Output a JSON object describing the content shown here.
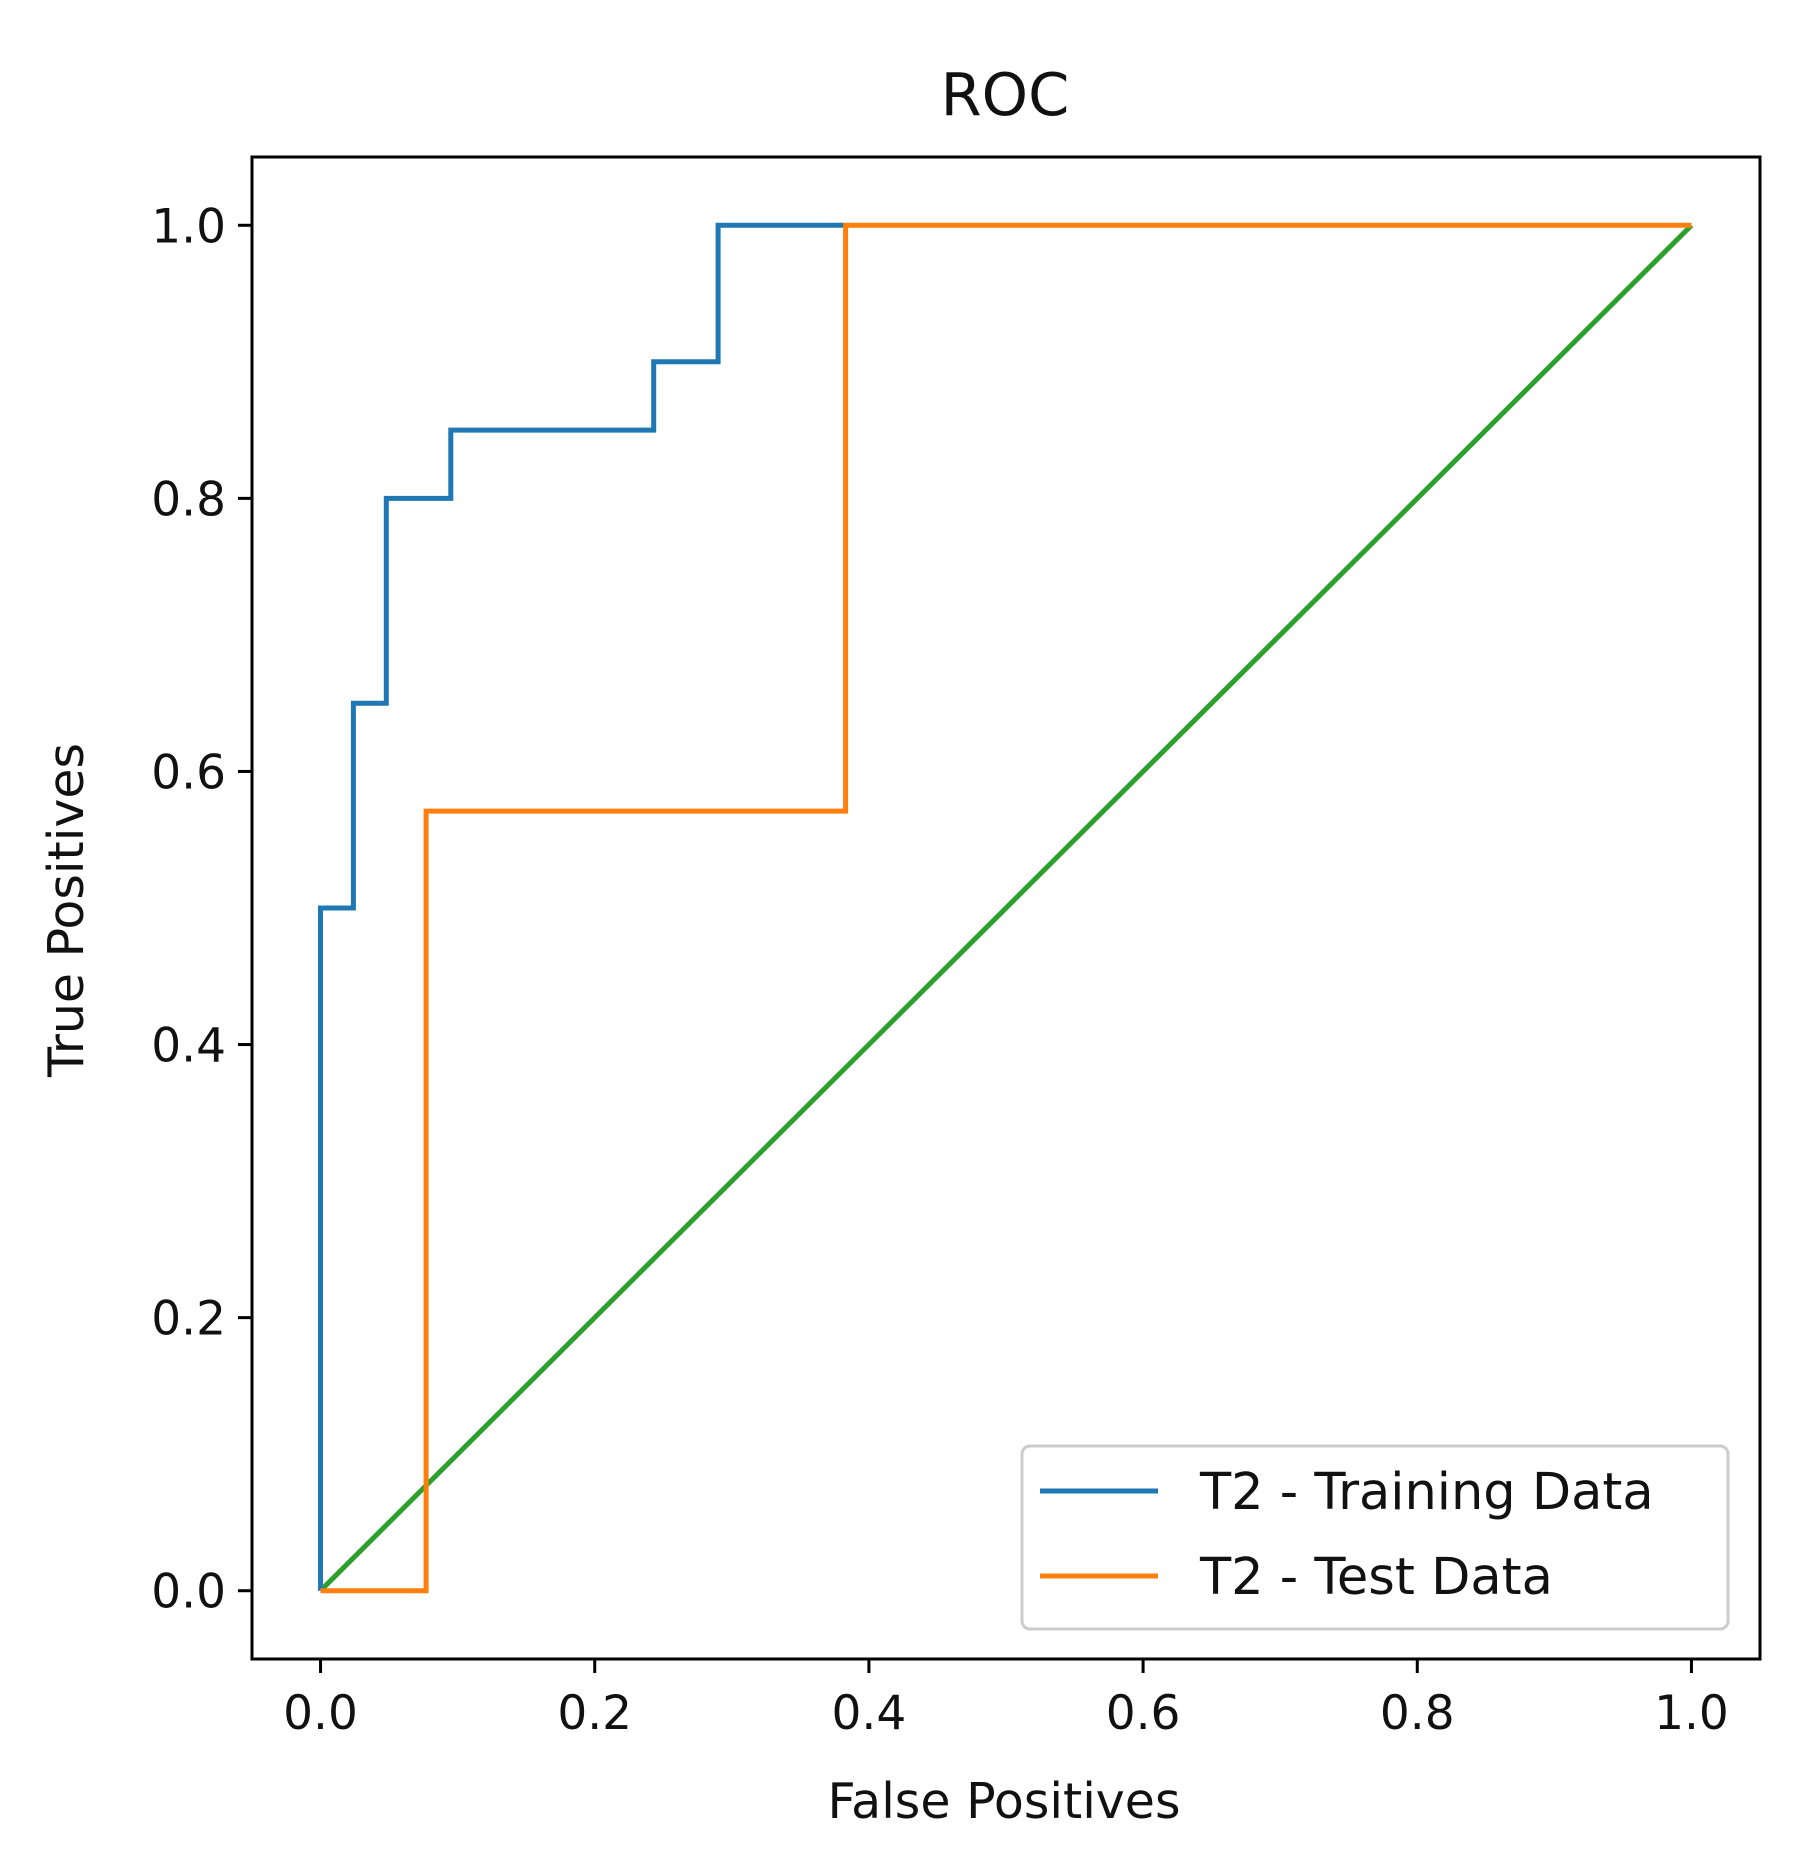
{
  "chart_data": {
    "type": "line",
    "title": "ROC",
    "xlabel": "False Positives",
    "ylabel": "True Positives",
    "xlim": [
      -0.05,
      1.05
    ],
    "ylim": [
      -0.05,
      1.05
    ],
    "xticks": [
      0.0,
      0.2,
      0.4,
      0.6,
      0.8,
      1.0
    ],
    "yticks": [
      0.0,
      0.2,
      0.4,
      0.6,
      0.8,
      1.0
    ],
    "xtick_labels": [
      "0.0",
      "0.2",
      "0.4",
      "0.6",
      "0.8",
      "1.0"
    ],
    "ytick_labels": [
      "0.0",
      "0.2",
      "0.4",
      "0.6",
      "0.8",
      "1.0"
    ],
    "grid": false,
    "legend_position": "lower-right",
    "series": [
      {
        "name": "T2 - Training Data",
        "color": "#1f77b4",
        "x": [
          0.0,
          0.0,
          0.024,
          0.024,
          0.048,
          0.048,
          0.095,
          0.095,
          0.243,
          0.243,
          0.29,
          0.29,
          0.383
        ],
        "y": [
          0.0,
          0.5,
          0.5,
          0.65,
          0.65,
          0.8,
          0.8,
          0.85,
          0.85,
          0.9,
          0.9,
          1.0,
          1.0
        ]
      },
      {
        "name": "T2 - Test Data",
        "color": "#ff7f0e",
        "x": [
          0.0,
          0.077,
          0.077,
          0.383,
          0.383,
          1.0
        ],
        "y": [
          0.0,
          0.0,
          0.571,
          0.571,
          1.0,
          1.0
        ]
      },
      {
        "name": "",
        "color": "#2ca02c",
        "x": [
          0.0,
          1.0
        ],
        "y": [
          0.0,
          1.0
        ]
      }
    ]
  }
}
